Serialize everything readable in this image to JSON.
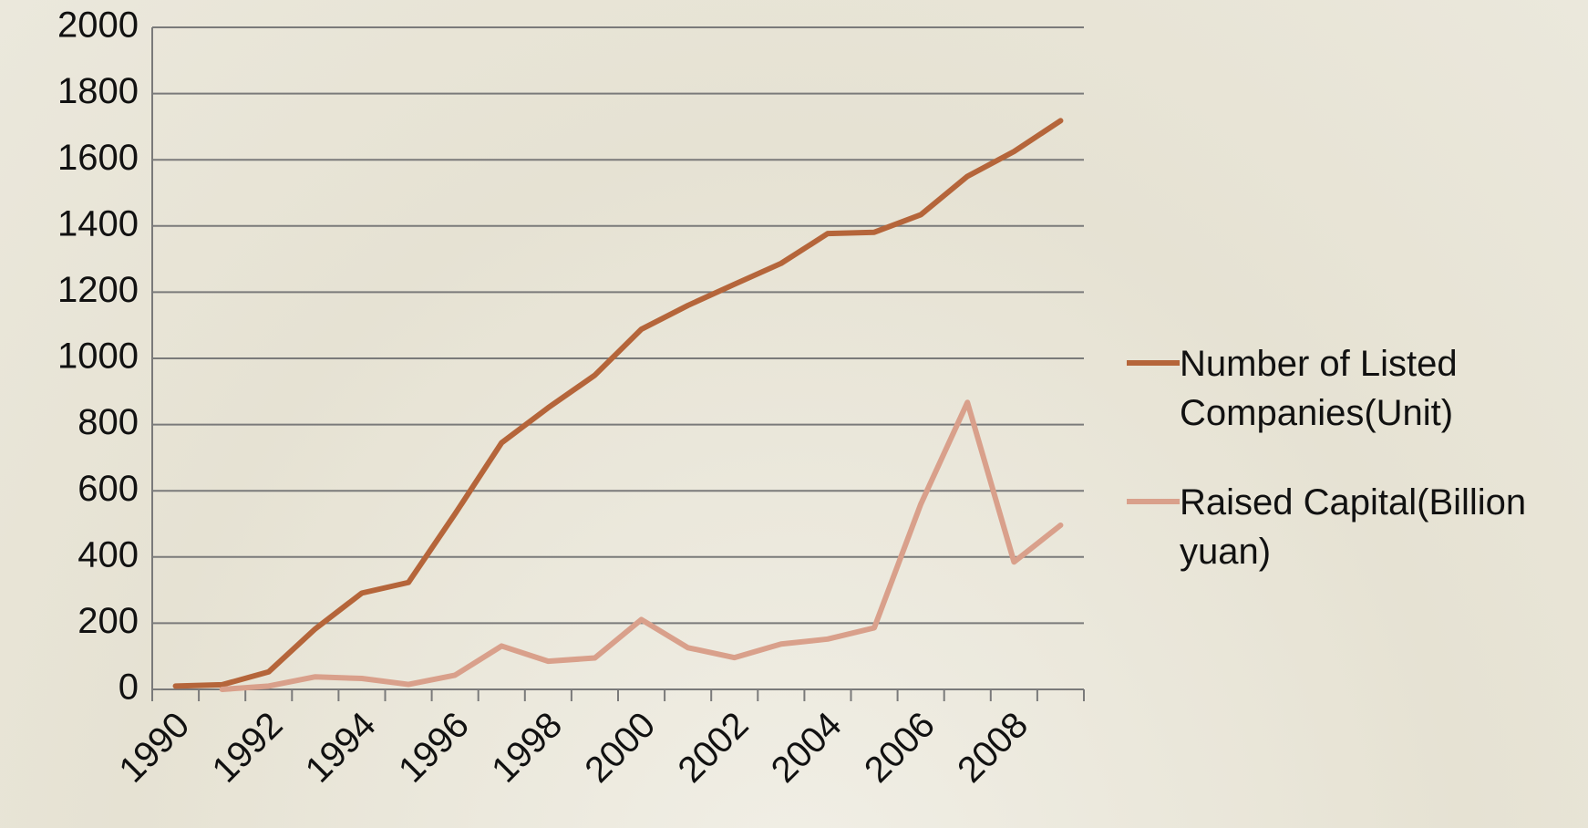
{
  "chart_data": {
    "type": "line",
    "categories": [
      "1990",
      null,
      "1992",
      null,
      "1994",
      null,
      "1996",
      null,
      "1998",
      null,
      "2000",
      null,
      "2002",
      null,
      "2004",
      null,
      "2006",
      null,
      "2008",
      null
    ],
    "series": [
      {
        "name": "Number of Listed Companies(Unit)",
        "color": "#b5653a",
        "values": [
          10,
          14,
          53,
          183,
          291,
          323,
          530,
          745,
          851,
          949,
          1088,
          1160,
          1224,
          1287,
          1377,
          1381,
          1434,
          1550,
          1625,
          1718
        ]
      },
      {
        "name": "Raised Capital(Billion yuan)",
        "color": "#d9a08b",
        "values": [
          null,
          0,
          10,
          38,
          33,
          15,
          43,
          131,
          85,
          95,
          211,
          126,
          96,
          137,
          152,
          186,
          560,
          867,
          385,
          496
        ]
      }
    ],
    "ylim": [
      0,
      2000
    ],
    "yticks": [
      0,
      200,
      400,
      600,
      800,
      1000,
      1200,
      1400,
      1600,
      1800,
      2000
    ],
    "grid": true,
    "legend": "right"
  }
}
